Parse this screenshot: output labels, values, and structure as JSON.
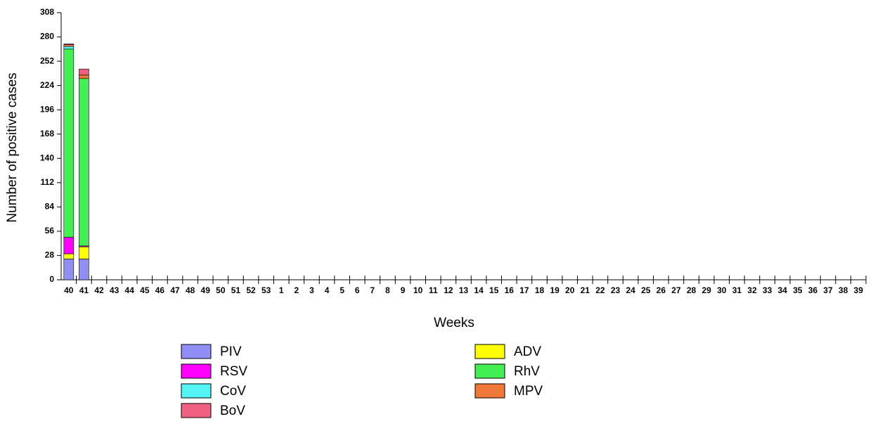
{
  "chart_data": {
    "type": "stacked-bar",
    "x_label": "Weeks",
    "y_label": "Number of positive cases",
    "categories": [
      "40",
      "41",
      "42",
      "43",
      "44",
      "45",
      "46",
      "47",
      "48",
      "49",
      "50",
      "51",
      "52",
      "53",
      "1",
      "2",
      "3",
      "4",
      "5",
      "6",
      "7",
      "8",
      "9",
      "10",
      "11",
      "12",
      "13",
      "14",
      "15",
      "16",
      "17",
      "18",
      "19",
      "20",
      "21",
      "22",
      "23",
      "24",
      "25",
      "26",
      "27",
      "28",
      "29",
      "30",
      "31",
      "32",
      "33",
      "34",
      "35",
      "36",
      "37",
      "38",
      "39"
    ],
    "series": [
      {
        "name": "PIV",
        "color": "#8f8ff5",
        "values": [
          24,
          24,
          null,
          null,
          null,
          null,
          null,
          null,
          null,
          null,
          null,
          null,
          null,
          null,
          null,
          null,
          null,
          null,
          null,
          null,
          null,
          null,
          null,
          null,
          null,
          null,
          null,
          null,
          null,
          null,
          null,
          null,
          null,
          null,
          null,
          null,
          null,
          null,
          null,
          null,
          null,
          null,
          null,
          null,
          null,
          null,
          null,
          null,
          null,
          null,
          null,
          null,
          null
        ]
      },
      {
        "name": "ADV",
        "color": "#ffff00",
        "values": [
          6,
          14,
          null,
          null,
          null,
          null,
          null,
          null,
          null,
          null,
          null,
          null,
          null,
          null,
          null,
          null,
          null,
          null,
          null,
          null,
          null,
          null,
          null,
          null,
          null,
          null,
          null,
          null,
          null,
          null,
          null,
          null,
          null,
          null,
          null,
          null,
          null,
          null,
          null,
          null,
          null,
          null,
          null,
          null,
          null,
          null,
          null,
          null,
          null,
          null,
          null,
          null,
          null
        ]
      },
      {
        "name": "RSV",
        "color": "#ff00ff",
        "values": [
          19,
          1,
          null,
          null,
          null,
          null,
          null,
          null,
          null,
          null,
          null,
          null,
          null,
          null,
          null,
          null,
          null,
          null,
          null,
          null,
          null,
          null,
          null,
          null,
          null,
          null,
          null,
          null,
          null,
          null,
          null,
          null,
          null,
          null,
          null,
          null,
          null,
          null,
          null,
          null,
          null,
          null,
          null,
          null,
          null,
          null,
          null,
          null,
          null,
          null,
          null,
          null,
          null
        ]
      },
      {
        "name": "RhV",
        "color": "#44ee55",
        "values": [
          217,
          193,
          null,
          null,
          null,
          null,
          null,
          null,
          null,
          null,
          null,
          null,
          null,
          null,
          null,
          null,
          null,
          null,
          null,
          null,
          null,
          null,
          null,
          null,
          null,
          null,
          null,
          null,
          null,
          null,
          null,
          null,
          null,
          null,
          null,
          null,
          null,
          null,
          null,
          null,
          null,
          null,
          null,
          null,
          null,
          null,
          null,
          null,
          null,
          null,
          null,
          null,
          null
        ]
      },
      {
        "name": "CoV",
        "color": "#55f5f5",
        "values": [
          3,
          0,
          null,
          null,
          null,
          null,
          null,
          null,
          null,
          null,
          null,
          null,
          null,
          null,
          null,
          null,
          null,
          null,
          null,
          null,
          null,
          null,
          null,
          null,
          null,
          null,
          null,
          null,
          null,
          null,
          null,
          null,
          null,
          null,
          null,
          null,
          null,
          null,
          null,
          null,
          null,
          null,
          null,
          null,
          null,
          null,
          null,
          null,
          null,
          null,
          null,
          null,
          null
        ]
      },
      {
        "name": "MPV",
        "color": "#f07838",
        "values": [
          2,
          4,
          null,
          null,
          null,
          null,
          null,
          null,
          null,
          null,
          null,
          null,
          null,
          null,
          null,
          null,
          null,
          null,
          null,
          null,
          null,
          null,
          null,
          null,
          null,
          null,
          null,
          null,
          null,
          null,
          null,
          null,
          null,
          null,
          null,
          null,
          null,
          null,
          null,
          null,
          null,
          null,
          null,
          null,
          null,
          null,
          null,
          null,
          null,
          null,
          null,
          null,
          null
        ]
      },
      {
        "name": "BoV",
        "color": "#f06080",
        "values": [
          1,
          7,
          null,
          null,
          null,
          null,
          null,
          null,
          null,
          null,
          null,
          null,
          null,
          null,
          null,
          null,
          null,
          null,
          null,
          null,
          null,
          null,
          null,
          null,
          null,
          null,
          null,
          null,
          null,
          null,
          null,
          null,
          null,
          null,
          null,
          null,
          null,
          null,
          null,
          null,
          null,
          null,
          null,
          null,
          null,
          null,
          null,
          null,
          null,
          null,
          null,
          null,
          null
        ]
      }
    ],
    "ylim": [
      0,
      308
    ],
    "yticks": [
      0,
      28,
      56,
      84,
      112,
      140,
      168,
      196,
      224,
      252,
      280,
      308
    ]
  }
}
